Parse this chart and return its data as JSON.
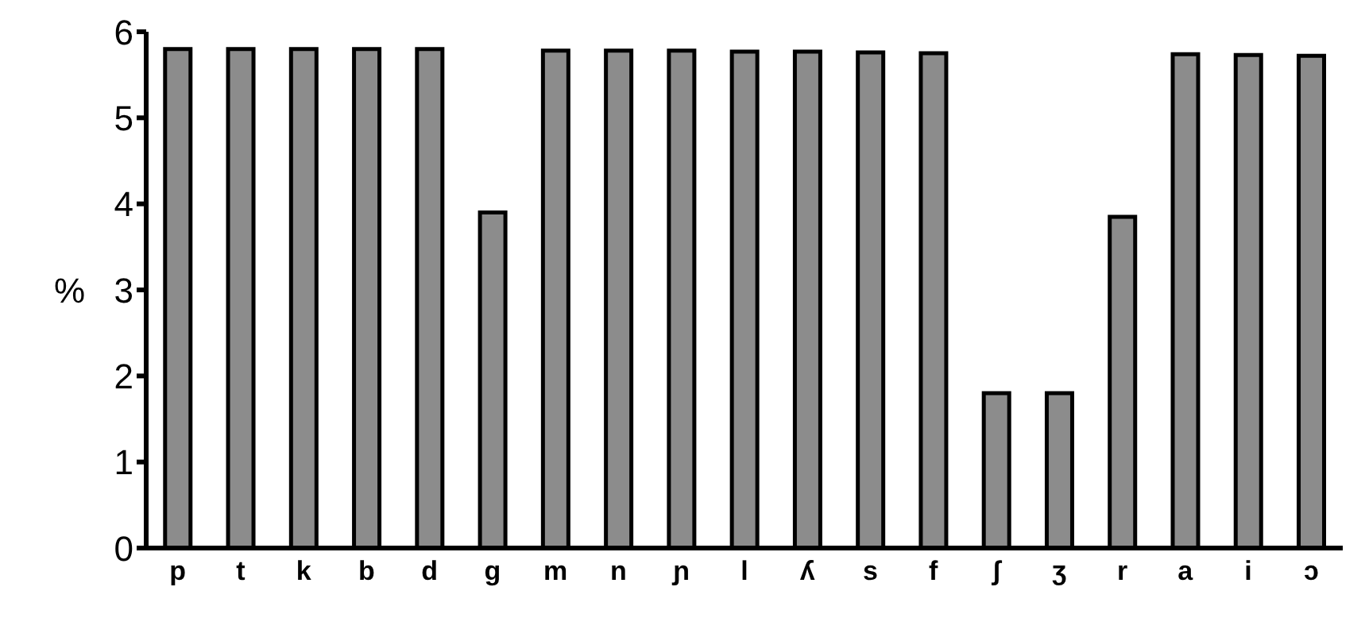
{
  "chart_data": {
    "type": "bar",
    "ylabel": "%",
    "categories": [
      "p",
      "t",
      "k",
      "b",
      "d",
      "g",
      "m",
      "n",
      "ɲ",
      "l",
      "ʎ",
      "s",
      "f",
      "ʃ",
      "ʒ",
      "r",
      "a",
      "i",
      "ɔ"
    ],
    "values": [
      5.8,
      5.8,
      5.8,
      5.8,
      5.8,
      3.9,
      5.78,
      5.78,
      5.78,
      5.77,
      5.77,
      5.76,
      5.75,
      1.8,
      1.8,
      3.85,
      5.74,
      5.73,
      5.72
    ],
    "color": "#8c8c8c",
    "ylim": [
      0,
      6
    ],
    "yticks": [
      0,
      1,
      2,
      3,
      4,
      5,
      6
    ],
    "grid": false,
    "legend": false
  }
}
